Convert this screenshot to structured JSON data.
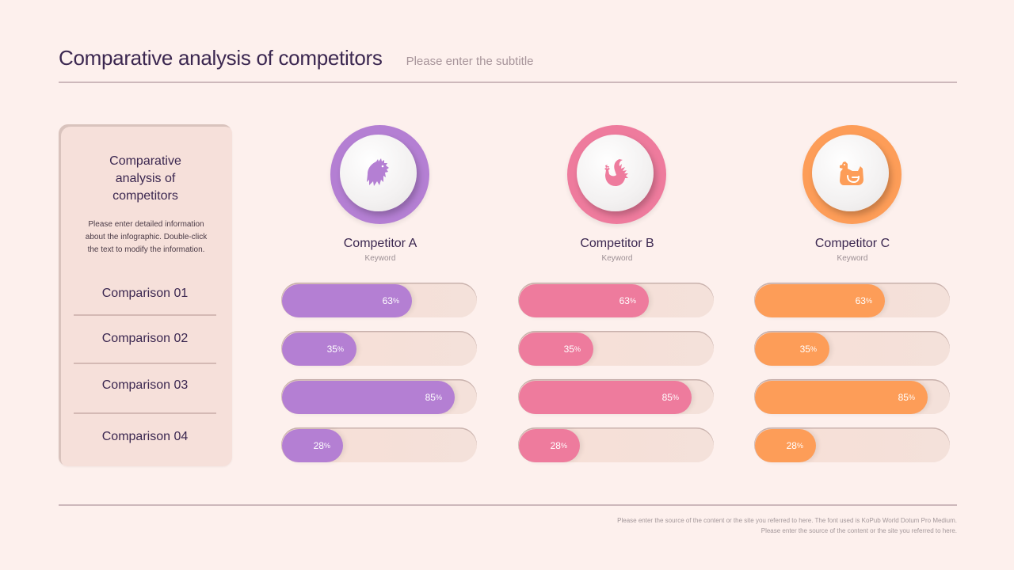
{
  "header": {
    "title": "Comparative analysis of competitors",
    "subtitle": "Please enter the subtitle"
  },
  "panel": {
    "title_lines": [
      "Comparative",
      "analysis of",
      "competitors"
    ],
    "description_lines": [
      "Please enter detailed information",
      "about the infographic. Double-click",
      "the text to modify the information."
    ],
    "rows": [
      "Comparison 01",
      "Comparison 02",
      "Comparison 03",
      "Comparison 04"
    ]
  },
  "competitors": [
    {
      "name": "Competitor A",
      "keyword": "Keyword",
      "icon": "rooster-head-icon",
      "color": "#b47fd3"
    },
    {
      "name": "Competitor B",
      "keyword": "Keyword",
      "icon": "rooster-icon",
      "color": "#ee7b9d"
    },
    {
      "name": "Competitor C",
      "keyword": "Keyword",
      "icon": "hen-icon",
      "color": "#fd9d58"
    }
  ],
  "percent_sign": "%",
  "chart_data": {
    "type": "bar",
    "orientation": "horizontal",
    "title": "Comparative analysis of competitors",
    "categories": [
      "Comparison 01",
      "Comparison 02",
      "Comparison 03",
      "Comparison 04"
    ],
    "series": [
      {
        "name": "Competitor A",
        "values": [
          63,
          35,
          85,
          28
        ],
        "color": "#b47fd3"
      },
      {
        "name": "Competitor B",
        "values": [
          63,
          35,
          85,
          28
        ],
        "color": "#ee7b9d"
      },
      {
        "name": "Competitor C",
        "values": [
          63,
          35,
          85,
          28
        ],
        "color": "#fd9d58"
      }
    ],
    "value_labels": [
      "63%",
      "35%",
      "85%",
      "28%"
    ],
    "xlim": [
      0,
      100
    ],
    "unit": "%"
  },
  "footer": {
    "line1": "Please enter the source of the content or the site you referred to here. The font used is KoPub World Dotum Pro Medium.",
    "line2": "Please enter the source of the content or the site you referred to here."
  }
}
